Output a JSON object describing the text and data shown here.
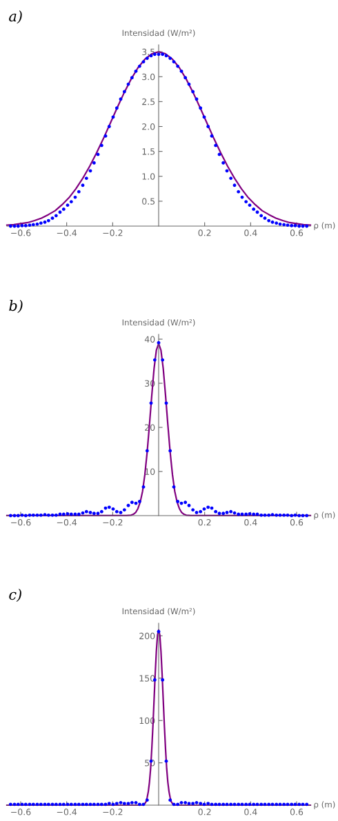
{
  "chart_data": [
    {
      "type": "line",
      "title": "a)",
      "xlabel": "ρ (m)",
      "ylabel": "Intensidad (W/m²)",
      "xlim": [
        -0.66,
        0.66
      ],
      "ylim": [
        0,
        3.64
      ],
      "xticks": [
        {
          "value": -0.6,
          "label": "−0.6"
        },
        {
          "value": -0.4,
          "label": "−0.4"
        },
        {
          "value": -0.2,
          "label": "−0.2"
        },
        0.2,
        0.4,
        0.6
      ],
      "yticks": [
        0.5,
        {
          "value": 1,
          "label": "1.0"
        },
        1.5,
        {
          "value": 2,
          "label": "2.0"
        },
        2.5,
        {
          "value": 3,
          "label": "3.0"
        },
        3.5
      ],
      "series": [
        {
          "type": "scatter",
          "color": "#0000ff",
          "marker": "circle",
          "x": [
            -0.644,
            -0.627,
            -0.611,
            -0.594,
            -0.578,
            -0.561,
            -0.545,
            -0.528,
            -0.512,
            -0.495,
            -0.479,
            -0.462,
            -0.446,
            -0.429,
            -0.413,
            -0.396,
            -0.38,
            -0.363,
            -0.347,
            -0.33,
            -0.314,
            -0.297,
            -0.281,
            -0.264,
            -0.248,
            -0.231,
            -0.215,
            -0.198,
            -0.182,
            -0.165,
            -0.149,
            -0.132,
            -0.116,
            -0.099,
            -0.083,
            -0.066,
            -0.05,
            -0.033,
            -0.017,
            0,
            0.017,
            0.033,
            0.05,
            0.066,
            0.083,
            0.099,
            0.116,
            0.132,
            0.149,
            0.165,
            0.182,
            0.198,
            0.215,
            0.231,
            0.248,
            0.264,
            0.281,
            0.297,
            0.314,
            0.33,
            0.347,
            0.363,
            0.38,
            0.396,
            0.413,
            0.429,
            0.446,
            0.462,
            0.479,
            0.495,
            0.512,
            0.528,
            0.545,
            0.561,
            0.578,
            0.594,
            0.611,
            0.627,
            0.644
          ],
          "values": [
            0,
            0,
            0,
            0.01,
            0.01,
            0.02,
            0.03,
            0.04,
            0.06,
            0.08,
            0.11,
            0.16,
            0.21,
            0.28,
            0.34,
            0.42,
            0.49,
            0.58,
            0.69,
            0.82,
            0.96,
            1.11,
            1.27,
            1.44,
            1.62,
            1.81,
            2.0,
            2.19,
            2.37,
            2.55,
            2.7,
            2.85,
            2.98,
            3.11,
            3.21,
            3.3,
            3.37,
            3.42,
            3.45,
            3.45,
            3.45,
            3.42,
            3.37,
            3.3,
            3.21,
            3.11,
            2.98,
            2.85,
            2.7,
            2.55,
            2.37,
            2.19,
            2.0,
            1.81,
            1.62,
            1.44,
            1.27,
            1.11,
            0.96,
            0.82,
            0.69,
            0.58,
            0.49,
            0.42,
            0.34,
            0.28,
            0.21,
            0.16,
            0.11,
            0.08,
            0.06,
            0.04,
            0.03,
            0.02,
            0.01,
            0.01,
            0,
            0,
            0
          ]
        },
        {
          "type": "line",
          "color": "#800080",
          "x": [
            -0.66,
            -0.63,
            -0.6,
            -0.57,
            -0.54,
            -0.51,
            -0.48,
            -0.45,
            -0.42,
            -0.39,
            -0.36,
            -0.33,
            -0.3,
            -0.27,
            -0.24,
            -0.21,
            -0.18,
            -0.15,
            -0.12,
            -0.09,
            -0.06,
            -0.03,
            0,
            0.03,
            0.06,
            0.09,
            0.12,
            0.15,
            0.18,
            0.21,
            0.24,
            0.27,
            0.3,
            0.33,
            0.36,
            0.39,
            0.42,
            0.45,
            0.48,
            0.51,
            0.54,
            0.57,
            0.6,
            0.63,
            0.66
          ],
          "values": [
            0.02,
            0.03,
            0.05,
            0.07,
            0.11,
            0.16,
            0.23,
            0.31,
            0.43,
            0.57,
            0.75,
            0.96,
            1.2,
            1.47,
            1.76,
            2.07,
            2.38,
            2.68,
            2.95,
            3.18,
            3.35,
            3.46,
            3.5,
            3.46,
            3.35,
            3.18,
            2.95,
            2.68,
            2.38,
            2.07,
            1.76,
            1.47,
            1.2,
            0.96,
            0.75,
            0.57,
            0.43,
            0.31,
            0.23,
            0.16,
            0.11,
            0.07,
            0.05,
            0.03,
            0.02
          ]
        }
      ]
    },
    {
      "type": "line",
      "title": "b)",
      "xlabel": "ρ (m)",
      "ylabel": "Intensidad (W/m²)",
      "xlim": [
        -0.66,
        0.66
      ],
      "ylim": [
        0,
        41.1
      ],
      "xticks": [
        {
          "value": -0.6,
          "label": "−0.6"
        },
        {
          "value": -0.4,
          "label": "−0.4"
        },
        {
          "value": -0.2,
          "label": "−0.2"
        },
        0.2,
        0.4,
        0.6
      ],
      "yticks": [
        10,
        20,
        30,
        40
      ],
      "series": [
        {
          "type": "scatter",
          "color": "#0000ff",
          "marker": "circle",
          "x": [
            -0.644,
            -0.627,
            -0.611,
            -0.594,
            -0.578,
            -0.561,
            -0.545,
            -0.528,
            -0.512,
            -0.495,
            -0.479,
            -0.462,
            -0.446,
            -0.429,
            -0.413,
            -0.396,
            -0.38,
            -0.363,
            -0.347,
            -0.33,
            -0.314,
            -0.297,
            -0.281,
            -0.264,
            -0.248,
            -0.231,
            -0.215,
            -0.198,
            -0.182,
            -0.165,
            -0.149,
            -0.132,
            -0.116,
            -0.099,
            -0.083,
            -0.066,
            -0.05,
            -0.033,
            -0.017,
            0,
            0.017,
            0.033,
            0.05,
            0.066,
            0.083,
            0.099,
            0.116,
            0.132,
            0.149,
            0.165,
            0.182,
            0.198,
            0.215,
            0.231,
            0.248,
            0.264,
            0.281,
            0.297,
            0.314,
            0.33,
            0.347,
            0.363,
            0.38,
            0.396,
            0.413,
            0.429,
            0.446,
            0.462,
            0.479,
            0.495,
            0.512,
            0.528,
            0.545,
            0.561,
            0.578,
            0.594,
            0.611,
            0.627,
            0.644
          ],
          "values": [
            0,
            0,
            0,
            0.1,
            0,
            0.1,
            0.1,
            0.1,
            0.1,
            0.2,
            0.1,
            0.1,
            0.1,
            0.3,
            0.3,
            0.4,
            0.3,
            0.3,
            0.3,
            0.6,
            0.9,
            0.7,
            0.5,
            0.5,
            0.9,
            1.7,
            1.9,
            1.5,
            0.9,
            0.7,
            1.3,
            2.3,
            3.0,
            2.8,
            3.2,
            6.5,
            14.7,
            25.5,
            35.3,
            39.2,
            35.3,
            25.5,
            14.7,
            6.5,
            3.2,
            2.8,
            3.0,
            2.3,
            1.3,
            0.7,
            0.9,
            1.5,
            1.9,
            1.7,
            0.9,
            0.5,
            0.5,
            0.7,
            0.9,
            0.6,
            0.3,
            0.3,
            0.3,
            0.4,
            0.3,
            0.3,
            0.1,
            0.1,
            0.1,
            0.2,
            0.1,
            0.1,
            0.1,
            0.1,
            0,
            0.1,
            0,
            0,
            0
          ]
        },
        {
          "type": "line",
          "color": "#800080",
          "x": [
            -0.66,
            -0.14,
            -0.12,
            -0.11,
            -0.1,
            -0.09,
            -0.08,
            -0.07,
            -0.06,
            -0.05,
            -0.04,
            -0.03,
            -0.02,
            -0.01,
            0,
            0.01,
            0.02,
            0.03,
            0.04,
            0.05,
            0.06,
            0.07,
            0.08,
            0.09,
            0.1,
            0.11,
            0.12,
            0.14,
            0.66
          ],
          "values": [
            0,
            0,
            0.1,
            0.3,
            0.7,
            1.6,
            3.1,
            5.5,
            9.3,
            14.4,
            20.6,
            27.2,
            33.3,
            37.5,
            39.0,
            37.5,
            33.3,
            27.2,
            20.6,
            14.4,
            9.3,
            5.5,
            3.1,
            1.6,
            0.7,
            0.3,
            0.1,
            0,
            0
          ]
        }
      ]
    },
    {
      "type": "line",
      "title": "c)",
      "xlabel": "ρ (m)",
      "ylabel": "Intensidad (W/m²)",
      "xlim": [
        -0.66,
        0.66
      ],
      "ylim": [
        0,
        215
      ],
      "xticks": [
        {
          "value": -0.6,
          "label": "−0.6"
        },
        {
          "value": -0.4,
          "label": "−0.4"
        },
        {
          "value": -0.2,
          "label": "−0.2"
        },
        0.2,
        0.4,
        0.6
      ],
      "yticks": [
        50,
        100,
        150,
        200
      ],
      "series": [
        {
          "type": "scatter",
          "color": "#0000ff",
          "marker": "circle",
          "x": [
            -0.644,
            -0.627,
            -0.611,
            -0.594,
            -0.578,
            -0.561,
            -0.545,
            -0.528,
            -0.512,
            -0.495,
            -0.479,
            -0.462,
            -0.446,
            -0.429,
            -0.413,
            -0.396,
            -0.38,
            -0.363,
            -0.347,
            -0.33,
            -0.314,
            -0.297,
            -0.281,
            -0.264,
            -0.248,
            -0.231,
            -0.215,
            -0.198,
            -0.182,
            -0.165,
            -0.149,
            -0.132,
            -0.116,
            -0.099,
            -0.083,
            -0.066,
            -0.05,
            -0.033,
            -0.017,
            0,
            0.017,
            0.033,
            0.05,
            0.066,
            0.083,
            0.099,
            0.116,
            0.132,
            0.149,
            0.165,
            0.182,
            0.198,
            0.215,
            0.231,
            0.248,
            0.264,
            0.281,
            0.297,
            0.314,
            0.33,
            0.347,
            0.363,
            0.38,
            0.396,
            0.413,
            0.429,
            0.446,
            0.462,
            0.479,
            0.495,
            0.512,
            0.528,
            0.545,
            0.561,
            0.578,
            0.594,
            0.611,
            0.627,
            0.644
          ],
          "values": [
            1,
            1,
            1,
            1,
            1,
            1,
            1,
            1,
            1,
            1,
            1,
            1,
            1,
            1,
            1,
            1,
            1,
            1,
            1,
            1,
            1,
            1,
            1,
            1,
            1,
            1,
            2,
            1,
            2,
            3,
            2,
            2,
            3,
            3,
            1,
            1,
            6,
            52,
            148,
            205,
            148,
            52,
            6,
            1,
            1,
            3,
            3,
            2,
            2,
            3,
            2,
            1,
            2,
            1,
            1,
            1,
            1,
            1,
            1,
            1,
            1,
            1,
            1,
            1,
            1,
            1,
            1,
            1,
            1,
            1,
            1,
            1,
            1,
            1,
            1,
            1,
            1,
            1,
            1
          ]
        },
        {
          "type": "line",
          "color": "#800080",
          "x": [
            -0.66,
            -0.07,
            -0.06,
            -0.055,
            -0.05,
            -0.045,
            -0.04,
            -0.035,
            -0.03,
            -0.025,
            -0.02,
            -0.015,
            -0.01,
            -0.005,
            0,
            0.005,
            0.01,
            0.015,
            0.02,
            0.025,
            0.03,
            0.035,
            0.04,
            0.045,
            0.05,
            0.055,
            0.06,
            0.07,
            0.66
          ],
          "values": [
            0,
            0,
            2,
            4,
            9,
            16,
            27,
            43,
            66,
            93,
            124,
            155,
            182,
            201,
            207,
            201,
            182,
            155,
            124,
            93,
            66,
            43,
            27,
            16,
            9,
            4,
            2,
            0,
            0
          ]
        }
      ]
    }
  ]
}
